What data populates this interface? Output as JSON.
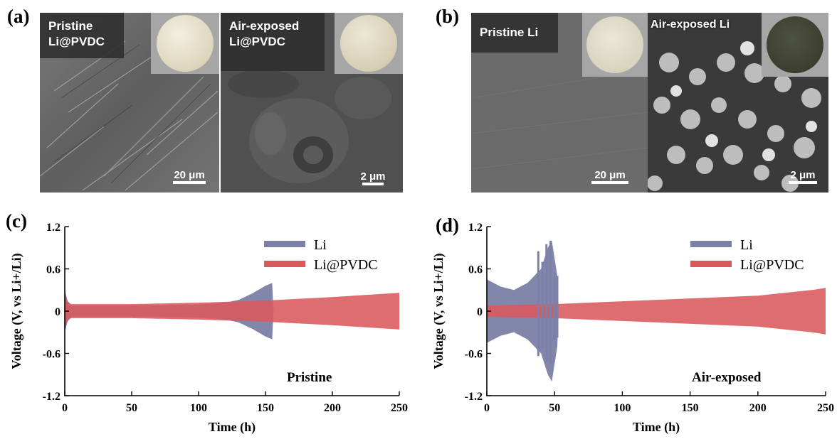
{
  "panels": {
    "a": {
      "letter": "(a)",
      "left": {
        "label_line1": "Pristine",
        "label_line2": "Li@PVDC",
        "scale": "20 μm"
      },
      "right": {
        "label_line1": "Air-exposed",
        "label_line2": "Li@PVDC",
        "scale": "2 μm"
      }
    },
    "b": {
      "letter": "(b)",
      "left": {
        "label": "Pristine Li",
        "scale": "20 μm"
      },
      "right": {
        "label": "Air-exposed Li",
        "scale": "2 μm"
      }
    },
    "c": {
      "letter": "(c)"
    },
    "d": {
      "letter": "(d)"
    }
  },
  "colors": {
    "li_series": "#7c80a6",
    "li_pvdc_series": "#d9595c",
    "coin_pristine": "#e8e4d2",
    "coin_dark": "#3c3f2e",
    "sem_gray": "#6d6d6d"
  },
  "chart_data": [
    {
      "type": "area",
      "panel": "c",
      "annotation": "Pristine",
      "xlabel": "Time (h)",
      "ylabel": "Voltage (V, vs Li+/Li)",
      "xlim": [
        0,
        250
      ],
      "ylim": [
        -1.2,
        1.2
      ],
      "xticks": [
        "0",
        "50",
        "100",
        "150",
        "200",
        "250"
      ],
      "yticks": [
        "1.2",
        "0.6",
        "0",
        "-0.6",
        "-1.2"
      ],
      "legend": "top-right",
      "series": [
        {
          "name": "Li",
          "x": [
            0,
            2,
            5,
            50,
            100,
            120,
            130,
            140,
            150,
            155,
            156
          ],
          "amplitude": [
            0.3,
            0.15,
            0.08,
            0.08,
            0.09,
            0.12,
            0.16,
            0.25,
            0.36,
            0.4,
            0
          ]
        },
        {
          "name": "Li@PVDC",
          "x": [
            0,
            2,
            5,
            50,
            100,
            150,
            200,
            250
          ],
          "amplitude": [
            0.25,
            0.12,
            0.1,
            0.1,
            0.12,
            0.15,
            0.2,
            0.26
          ]
        }
      ]
    },
    {
      "type": "area",
      "panel": "d",
      "annotation": "Air-exposed",
      "xlabel": "Time (h)",
      "ylabel": "Voltage (V, vs Li+/Li)",
      "xlim": [
        0,
        250
      ],
      "ylim": [
        -1.2,
        1.2
      ],
      "xticks": [
        "0",
        "50",
        "100",
        "150",
        "200",
        "250"
      ],
      "yticks": [
        "1.2",
        "0.6",
        "0",
        "-0.6",
        "-1.2"
      ],
      "legend": "top-right",
      "series": [
        {
          "name": "Li",
          "x": [
            0,
            10,
            20,
            30,
            35,
            40,
            45,
            48,
            52,
            53
          ],
          "amplitude": [
            0.45,
            0.35,
            0.3,
            0.4,
            0.5,
            0.6,
            0.9,
            1.0,
            0.5,
            0
          ]
        },
        {
          "name": "Li@PVDC",
          "x": [
            0,
            50,
            100,
            150,
            200,
            240,
            250
          ],
          "amplitude": [
            0.08,
            0.1,
            0.14,
            0.18,
            0.22,
            0.3,
            0.33
          ]
        }
      ]
    }
  ]
}
